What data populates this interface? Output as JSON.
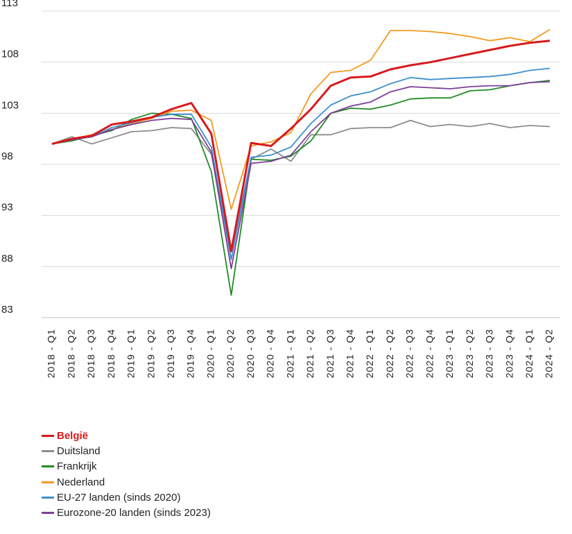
{
  "chart_data": {
    "type": "line",
    "title": "",
    "xlabel": "",
    "ylabel": "",
    "ylim": [
      83,
      113
    ],
    "yticks": [
      83,
      88,
      93,
      98,
      103,
      108,
      113
    ],
    "grid": true,
    "legend_position": "bottom-left",
    "categories": [
      "2018-Q1",
      "2018-Q2",
      "2018-Q3",
      "2018-Q4",
      "2019-Q1",
      "2019-Q2",
      "2019-Q3",
      "2019-Q4",
      "2020-Q1",
      "2020-Q2",
      "2020-Q3",
      "2020-Q4",
      "2021-Q1",
      "2021-Q2",
      "2021-Q3",
      "2021-Q4",
      "2022-Q1",
      "2022-Q2",
      "2022-Q3",
      "2022-Q4",
      "2023-Q1",
      "2023-Q2",
      "2023-Q3",
      "2023-Q4",
      "2024-Q1",
      "2024-Q2"
    ],
    "series": [
      {
        "name": "België",
        "color": "#d7191c",
        "bold": true,
        "values": [
          100,
          100.5,
          100.8,
          101.9,
          102.2,
          102.6,
          103.4,
          104.0,
          101.0,
          89.5,
          100.1,
          99.8,
          101.5,
          103.4,
          105.7,
          106.5,
          106.6,
          107.3,
          107.7,
          108.0,
          108.4,
          108.8,
          109.2,
          109.6,
          109.9,
          110.1
        ]
      },
      {
        "name": "Duitsland",
        "color": "#8c8c8c",
        "bold": false,
        "values": [
          100,
          100.7,
          100.0,
          100.6,
          101.2,
          101.3,
          101.6,
          101.5,
          99.0,
          89.6,
          98.5,
          99.5,
          98.3,
          100.9,
          100.9,
          101.5,
          101.6,
          101.6,
          102.3,
          101.7,
          101.9,
          101.7,
          102.0,
          101.6,
          101.8,
          101.7
        ]
      },
      {
        "name": "Frankrijk",
        "color": "#1f8b24",
        "bold": false,
        "values": [
          100,
          100.3,
          100.8,
          101.3,
          102.4,
          103.0,
          102.9,
          102.5,
          97.3,
          85.2,
          98.5,
          98.4,
          98.8,
          100.3,
          103.0,
          103.5,
          103.4,
          103.8,
          104.4,
          104.5,
          104.5,
          105.2,
          105.3,
          105.7,
          106.0,
          106.2
        ]
      },
      {
        "name": "Nederland",
        "color": "#f39a1e",
        "bold": false,
        "values": [
          100,
          100.5,
          100.9,
          101.4,
          102.0,
          102.5,
          103.2,
          103.3,
          102.3,
          93.6,
          99.8,
          100.2,
          101.1,
          104.9,
          107.0,
          107.2,
          108.2,
          111.1,
          111.1,
          111.0,
          110.8,
          110.5,
          110.1,
          110.4,
          110.0,
          111.2
        ]
      },
      {
        "name": "EU-27 landen (sinds 2020)",
        "color": "#3b8fd0",
        "bold": false,
        "values": [
          100,
          100.4,
          100.7,
          101.6,
          102.1,
          102.6,
          102.9,
          102.9,
          99.7,
          88.7,
          98.7,
          98.9,
          99.7,
          102.0,
          103.8,
          104.7,
          105.1,
          105.9,
          106.5,
          106.3,
          106.4,
          106.5,
          106.6,
          106.8,
          107.2,
          107.4
        ]
      },
      {
        "name": "Eurozone-20 landen (sinds 2023)",
        "color": "#7b3f98",
        "bold": false,
        "values": [
          100,
          100.4,
          100.7,
          101.4,
          101.9,
          102.3,
          102.5,
          102.4,
          99.2,
          87.8,
          98.1,
          98.3,
          98.9,
          101.2,
          103.0,
          103.7,
          104.1,
          105.1,
          105.6,
          105.5,
          105.4,
          105.6,
          105.7,
          105.7,
          106.0,
          106.1
        ]
      }
    ]
  }
}
